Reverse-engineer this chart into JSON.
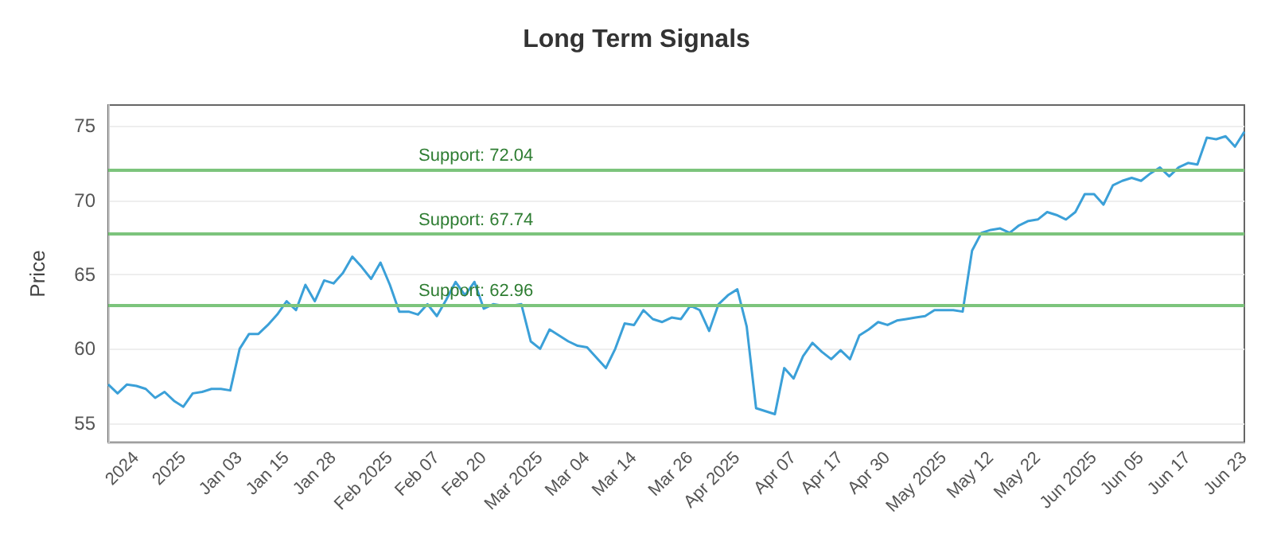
{
  "chart_data": {
    "type": "line",
    "title": "Long Term Signals",
    "ylabel": "Price",
    "categories": [
      null,
      null,
      null,
      "2024",
      null,
      null,
      null,
      null,
      "2025",
      null,
      null,
      null,
      null,
      null,
      "Jan 03",
      null,
      null,
      null,
      null,
      "Jan 15",
      null,
      null,
      null,
      null,
      "Jan 28",
      null,
      null,
      null,
      null,
      null,
      "Feb 2025",
      null,
      null,
      null,
      null,
      "Feb 07",
      null,
      null,
      null,
      null,
      "Feb 20",
      null,
      null,
      null,
      null,
      null,
      "Mar 2025",
      null,
      null,
      null,
      null,
      "Mar 04",
      null,
      null,
      null,
      null,
      "Mar 14",
      null,
      null,
      null,
      null,
      null,
      "Mar 26",
      null,
      null,
      null,
      null,
      "Apr 2025",
      null,
      null,
      null,
      null,
      null,
      "Apr 07",
      null,
      null,
      null,
      null,
      "Apr 17",
      null,
      null,
      null,
      null,
      "Apr 30",
      null,
      null,
      null,
      null,
      null,
      "May 2025",
      null,
      null,
      null,
      null,
      "May 12",
      null,
      null,
      null,
      null,
      "May 22",
      null,
      null,
      null,
      null,
      null,
      "Jun 2025",
      null,
      null,
      null,
      null,
      "Jun 05",
      null,
      null,
      null,
      null,
      "Jun 17",
      null,
      null,
      null,
      null,
      null,
      "Jun 23"
    ],
    "series": [
      {
        "color": "#3ba0d8",
        "values": [
          57.6,
          57.0,
          57.6,
          57.5,
          57.3,
          56.7,
          57.1,
          56.5,
          56.1,
          57.0,
          57.1,
          57.3,
          57.3,
          57.2,
          60.0,
          61.0,
          61.0,
          61.6,
          62.3,
          63.2,
          62.6,
          64.3,
          63.2,
          64.6,
          64.4,
          65.1,
          66.2,
          65.5,
          64.7,
          65.8,
          64.3,
          62.5,
          62.5,
          62.3,
          63.0,
          62.2,
          63.3,
          64.5,
          63.6,
          64.5,
          62.7,
          63.0,
          62.9,
          62.9,
          63.0,
          60.5,
          60.0,
          61.3,
          60.9,
          60.5,
          60.2,
          60.1,
          59.4,
          58.7,
          60.0,
          61.7,
          61.6,
          62.6,
          62.0,
          61.8,
          62.1,
          62.0,
          62.9,
          62.6,
          61.2,
          63.0,
          63.6,
          64.0,
          61.5,
          56.0,
          55.8,
          55.6,
          58.7,
          58.0,
          59.5,
          60.4,
          59.8,
          59.3,
          59.9,
          59.3,
          60.9,
          61.3,
          61.8,
          61.6,
          61.9,
          62.0,
          62.1,
          62.2,
          62.6,
          62.6,
          62.6,
          62.5,
          66.6,
          67.8,
          68.0,
          68.1,
          67.8,
          68.3,
          68.6,
          68.7,
          69.2,
          69.0,
          68.7,
          69.2,
          70.4,
          70.4,
          69.7,
          71.0,
          71.3,
          71.5,
          71.3,
          71.8,
          72.2,
          71.6,
          72.2,
          72.5,
          72.4,
          74.2,
          74.1,
          74.3,
          73.6,
          74.6
        ]
      }
    ],
    "ylim": [
      53.7,
      76.4
    ],
    "yticks": [
      55,
      60,
      65,
      70,
      75
    ],
    "grid": "y",
    "marker": "none",
    "line_style": "solid",
    "ref_lines": [
      {
        "axis": "y",
        "value": 72.04,
        "label": "Support: 72.04",
        "color": "#7cc47c"
      },
      {
        "axis": "y",
        "value": 67.74,
        "label": "Support: 67.74",
        "color": "#7cc47c"
      },
      {
        "axis": "y",
        "value": 62.96,
        "label": "Support: 62.96",
        "color": "#7cc47c"
      }
    ]
  }
}
